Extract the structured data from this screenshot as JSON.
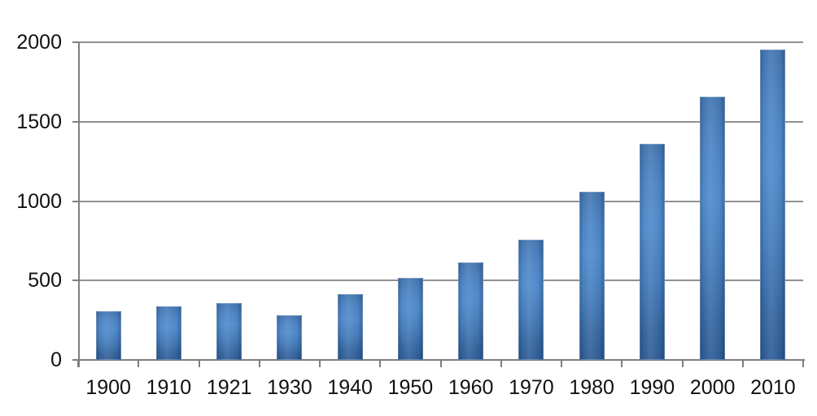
{
  "chart_data": {
    "type": "bar",
    "categories": [
      "1900",
      "1910",
      "1921",
      "1930",
      "1940",
      "1950",
      "1960",
      "1970",
      "1980",
      "1990",
      "2000",
      "2010"
    ],
    "values": [
      307,
      336,
      358,
      283,
      415,
      517,
      614,
      757,
      1060,
      1363,
      1657,
      1955
    ],
    "title": "",
    "xlabel": "",
    "ylabel": "",
    "ylim": [
      0,
      2000
    ],
    "y_ticks": [
      0,
      500,
      1000,
      1500,
      2000
    ],
    "grid": true,
    "legend": false,
    "legend_position": "none",
    "bar_color": "#4f86c6",
    "bar_gradient_top": "#4173ad",
    "bar_gradient_mid": "#5089ca",
    "bar_gradient_bottom": "#2d5b94",
    "gridline_color": "#919191",
    "axis_color": "#7f7f7f",
    "label_color": "#111111",
    "background_color": "#ffffff"
  }
}
